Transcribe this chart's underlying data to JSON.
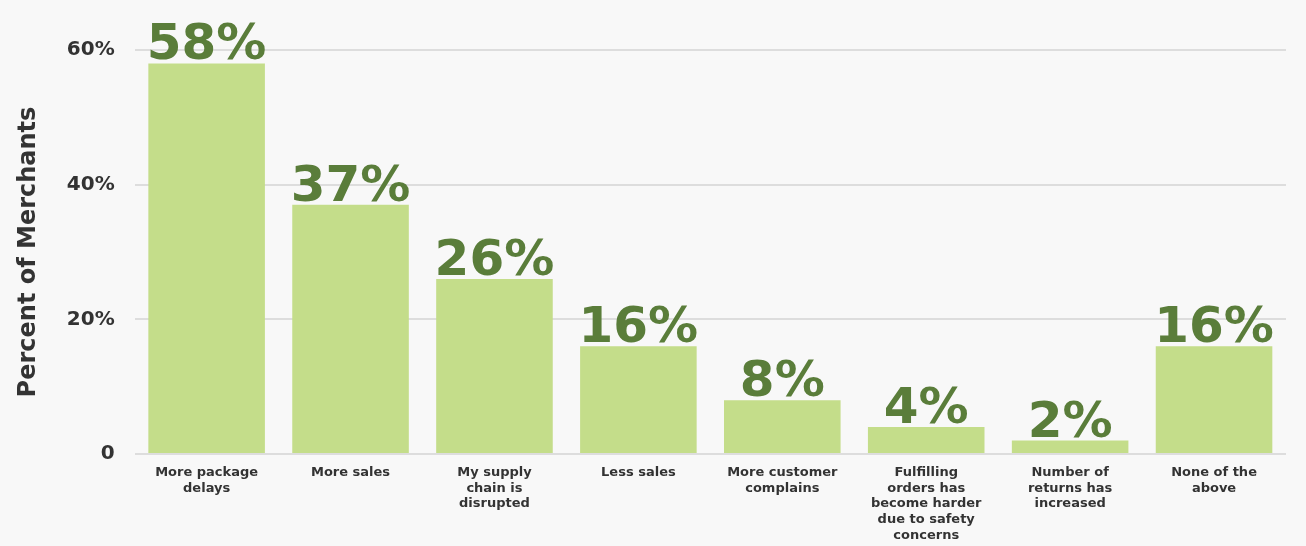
{
  "chart_data": {
    "type": "bar",
    "ylabel": "Percent of Merchants",
    "categories": [
      "More package delays",
      "More sales",
      "My supply chain is disrupted",
      "Less sales",
      "More customer complains",
      "Fulfilling orders has become harder due to safety concerns",
      "Number of returns has increased",
      "None of the above"
    ],
    "values": [
      58,
      37,
      26,
      16,
      8,
      4,
      2,
      16
    ],
    "value_labels": [
      "58%",
      "37%",
      "26%",
      "16%",
      "8%",
      "4%",
      "2%",
      "16%"
    ],
    "color": "#c4dd8a",
    "ylim": [
      0,
      60
    ],
    "yticks": [
      0,
      {
        "value": 20,
        "label": "20%"
      },
      {
        "value": 40,
        "label": "40%"
      },
      {
        "value": 60,
        "label": "60%"
      }
    ],
    "grid": "y",
    "legend": false
  }
}
